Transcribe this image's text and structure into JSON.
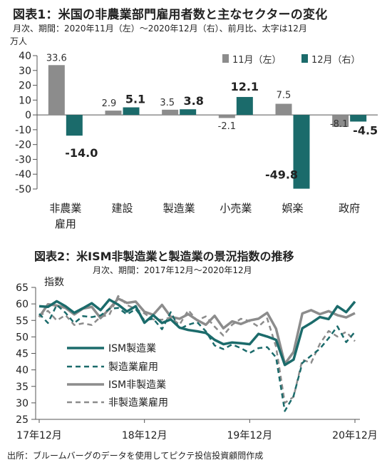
{
  "chart1": {
    "title": "図表1：米国の非農業部門雇用者数と主なセクターの変化",
    "subtitle": "月次、期間：2020年11月（左）～2020年12月（右）、前月比、太字は12月",
    "unit": "万人",
    "legend": [
      "11月（左）",
      "12月（右）"
    ],
    "y_ticks": [
      "40",
      "30",
      "20",
      "10",
      "0",
      "-10",
      "-20",
      "-30",
      "-40",
      "-50"
    ],
    "category_labels": [
      [
        "非農業",
        "雇用"
      ],
      [
        "建設"
      ],
      [
        "製造業"
      ],
      [
        "小売業"
      ],
      [
        "娯楽"
      ],
      [
        "政府"
      ]
    ],
    "nov_labels": [
      "33.6",
      "2.9",
      "3.5",
      "-2.1",
      "7.5",
      "-8.1"
    ],
    "dec_labels": [
      "-14.0",
      "5.1",
      "3.8",
      "12.1",
      "-49.8",
      "-4.5"
    ],
    "colors": {
      "nov": "#8c8c8c",
      "dec": "#1b6b6b"
    }
  },
  "chart2": {
    "title": "図表2：米ISM非製造業と製造業の景況指数の推移",
    "subtitle": "月次、期間：2017年12月～2020年12月",
    "ylabel": "指数",
    "y_ticks": [
      "65",
      "60",
      "55",
      "50",
      "45",
      "40",
      "35",
      "30",
      "25"
    ],
    "x_ticks": [
      "17年12月",
      "18年12月",
      "19年12月",
      "20年12月"
    ],
    "legend": [
      "ISM製造業",
      "製造業雇用",
      "ISM非製造業",
      "非製造業雇用"
    ],
    "colors": {
      "mfg": "#1b6b6b",
      "nonmfg": "#8c8c8c"
    }
  },
  "source": "出所：ブルームバーグのデータを使用してピクテ投信投資顧問作成",
  "chart_data": [
    {
      "type": "bar",
      "title": "図表1：米国の非農業部門雇用者数と主なセクターの変化",
      "ylabel": "万人",
      "ylim": [
        -50,
        40
      ],
      "categories": [
        "非農業雇用",
        "建設",
        "製造業",
        "小売業",
        "娯楽",
        "政府"
      ],
      "series": [
        {
          "name": "11月（左）",
          "values": [
            33.6,
            2.9,
            3.5,
            -2.1,
            7.5,
            -8.1
          ]
        },
        {
          "name": "12月（右）",
          "values": [
            -14.0,
            5.1,
            3.8,
            12.1,
            -49.8,
            -4.5
          ]
        }
      ],
      "legend": "top-right",
      "grid": false
    },
    {
      "type": "line",
      "title": "図表2：米ISM非製造業と製造業の景況指数の推移",
      "ylabel": "指数",
      "ylim": [
        25,
        65
      ],
      "x_range": [
        "2017-12",
        "2020-12"
      ],
      "x": [
        "2017-12",
        "2018-01",
        "2018-02",
        "2018-03",
        "2018-04",
        "2018-05",
        "2018-06",
        "2018-07",
        "2018-08",
        "2018-09",
        "2018-10",
        "2018-11",
        "2018-12",
        "2019-01",
        "2019-02",
        "2019-03",
        "2019-04",
        "2019-05",
        "2019-06",
        "2019-07",
        "2019-08",
        "2019-09",
        "2019-10",
        "2019-11",
        "2019-12",
        "2020-01",
        "2020-02",
        "2020-03",
        "2020-04",
        "2020-05",
        "2020-06",
        "2020-07",
        "2020-08",
        "2020-09",
        "2020-10",
        "2020-11",
        "2020-12"
      ],
      "series": [
        {
          "name": "ISM製造業",
          "values": [
            59.3,
            59.1,
            60.8,
            59.3,
            57.3,
            58.7,
            60.2,
            58.1,
            61.3,
            59.8,
            57.7,
            59.3,
            54.3,
            56.6,
            54.2,
            55.3,
            52.8,
            52.1,
            51.7,
            51.2,
            49.1,
            47.8,
            48.3,
            48.1,
            47.8,
            50.9,
            50.1,
            49.1,
            41.5,
            43.1,
            52.6,
            54.2,
            56.0,
            55.4,
            59.3,
            57.5,
            60.7
          ]
        },
        {
          "name": "製造業雇用",
          "values": [
            57.0,
            54.2,
            59.7,
            57.3,
            54.2,
            56.3,
            56.0,
            56.5,
            58.5,
            58.8,
            56.8,
            58.4,
            55.0,
            55.5,
            52.3,
            57.5,
            52.4,
            53.7,
            54.5,
            51.7,
            47.4,
            46.3,
            47.7,
            46.6,
            45.1,
            46.6,
            46.9,
            43.8,
            27.5,
            32.1,
            42.1,
            44.3,
            46.4,
            49.6,
            53.2,
            48.4,
            51.5
          ]
        },
        {
          "name": "ISM非製造業",
          "values": [
            56.0,
            59.9,
            59.5,
            58.8,
            56.8,
            58.6,
            59.1,
            55.7,
            58.5,
            61.6,
            60.3,
            60.7,
            57.6,
            56.7,
            59.7,
            56.1,
            55.5,
            56.9,
            55.1,
            53.7,
            56.4,
            52.6,
            54.7,
            53.9,
            55.0,
            55.5,
            57.3,
            52.5,
            41.8,
            45.4,
            57.1,
            58.1,
            56.9,
            57.8,
            56.6,
            55.9,
            57.2
          ]
        },
        {
          "name": "非製造業雇用",
          "values": [
            56.3,
            57.9,
            55.0,
            56.6,
            53.6,
            54.1,
            53.6,
            56.1,
            56.7,
            62.4,
            59.7,
            58.4,
            57.1,
            55.3,
            55.2,
            55.9,
            53.7,
            58.1,
            55.0,
            56.2,
            53.1,
            50.4,
            53.7,
            55.5,
            54.8,
            53.1,
            55.6,
            47.0,
            30.0,
            31.8,
            43.1,
            42.1,
            47.9,
            51.8,
            50.1,
            51.5,
            48.7
          ]
        }
      ],
      "legend": "bottom-left",
      "grid": false
    }
  ]
}
